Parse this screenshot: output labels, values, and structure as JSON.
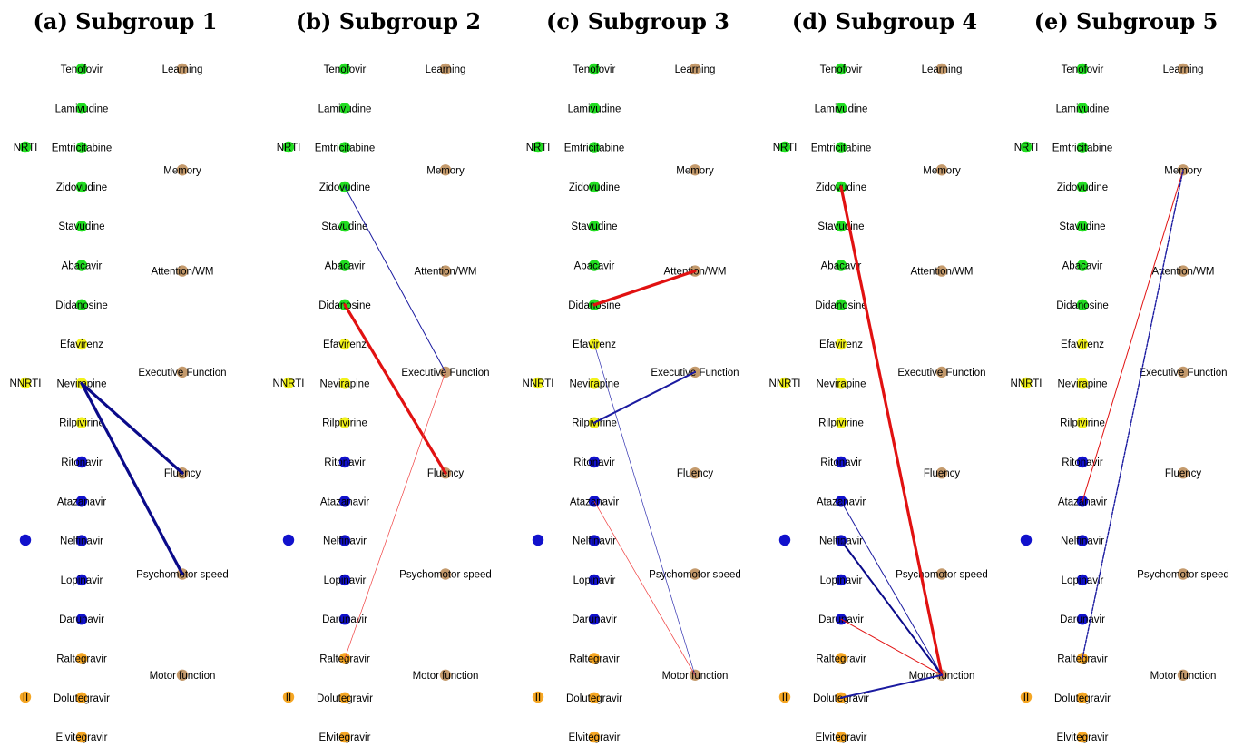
{
  "panels": [
    {
      "title": "(a) Subgroup 1",
      "edges": [
        {
          "from": "drug:Nevirapine",
          "to": "out:Fluency",
          "color": "#0a0a8a",
          "width": "thick"
        },
        {
          "from": "drug:Nevirapine",
          "to": "out:Psychomotor speed",
          "color": "#0a0a8a",
          "width": "thick"
        }
      ]
    },
    {
      "title": "(b) Subgroup 2",
      "edges": [
        {
          "from": "drug:Zidovudine",
          "to": "out:Executive Function",
          "color": "#1a1aa0",
          "width": "thin"
        },
        {
          "from": "drug:Didanosine",
          "to": "out:Fluency",
          "color": "#e11111",
          "width": "thick"
        },
        {
          "from": "drug:Raltegravir",
          "to": "out:Executive Function",
          "color": "#f04040",
          "width": "hair"
        }
      ]
    },
    {
      "title": "(c) Subgroup 3",
      "edges": [
        {
          "from": "drug:Didanosine",
          "to": "out:Attention/WM",
          "color": "#e11111",
          "width": "thick"
        },
        {
          "from": "drug:Rilpivirine",
          "to": "out:Executive Function",
          "color": "#1a1aa0",
          "width": "medium"
        },
        {
          "from": "drug:Efavirenz",
          "to": "out:Motor function",
          "color": "#3030b0",
          "width": "hair"
        },
        {
          "from": "drug:Atazanavir",
          "to": "out:Motor function",
          "color": "#f04040",
          "width": "hair"
        }
      ]
    },
    {
      "title": "(d) Subgroup 4",
      "edges": [
        {
          "from": "drug:Zidovudine",
          "to": "out:Motor function",
          "color": "#e11111",
          "width": "thick"
        },
        {
          "from": "drug:Atazanavir",
          "to": "out:Motor function",
          "color": "#1a1aa0",
          "width": "thin"
        },
        {
          "from": "drug:Nelfinavir",
          "to": "out:Motor function",
          "color": "#0a0a8a",
          "width": "medium"
        },
        {
          "from": "drug:Darunavir",
          "to": "out:Motor function",
          "color": "#e11111",
          "width": "thin"
        },
        {
          "from": "drug:Dolutegravir",
          "to": "out:Motor function",
          "color": "#1a1aa0",
          "width": "medium"
        }
      ]
    },
    {
      "title": "(e) Subgroup  5",
      "edges": [
        {
          "from": "drug:Atazanavir",
          "to": "out:Memory",
          "color": "#e11111",
          "width": "thin"
        },
        {
          "from": "drug:Raltegravir",
          "to": "out:Memory",
          "color": "#1a1aa0",
          "width": "dashed"
        }
      ]
    }
  ],
  "drugs": [
    {
      "name": "Tenofovir",
      "class": "NRTI"
    },
    {
      "name": "Lamivudine",
      "class": "NRTI"
    },
    {
      "name": "Emtricitabine",
      "class": "NRTI"
    },
    {
      "name": "Zidovudine",
      "class": "NRTI"
    },
    {
      "name": "Stavudine",
      "class": "NRTI"
    },
    {
      "name": "Abacavir",
      "class": "NRTI"
    },
    {
      "name": "Didanosine",
      "class": "NRTI"
    },
    {
      "name": "Efavirenz",
      "class": "NNRTI"
    },
    {
      "name": "Nevirapine",
      "class": "NNRTI"
    },
    {
      "name": "Rilpivirine",
      "class": "NNRTI"
    },
    {
      "name": "Ritonavir",
      "class": "PI"
    },
    {
      "name": "Atazanavir",
      "class": "PI"
    },
    {
      "name": "Nelfinavir",
      "class": "PI"
    },
    {
      "name": "Lopinavir",
      "class": "PI"
    },
    {
      "name": "Darunavir",
      "class": "PI"
    },
    {
      "name": "Raltegravir",
      "class": "II"
    },
    {
      "name": "Dolutegravir",
      "class": "II"
    },
    {
      "name": "Elvitegravir",
      "class": "II"
    }
  ],
  "classes": [
    {
      "key": "NRTI",
      "label": "NRTI",
      "color": "#22dd22"
    },
    {
      "key": "NNRTI",
      "label": "NNRTI",
      "color": "#f2f21a"
    },
    {
      "key": "PI",
      "label": "",
      "color": "#1111cc"
    },
    {
      "key": "II",
      "label": "II",
      "color": "#f5a623"
    }
  ],
  "outcomes": [
    "Learning",
    "Memory",
    "Attention/WM",
    "Executive Function",
    "Fluency",
    "Psychomotor speed",
    "Motor function"
  ],
  "outcome_color": "#c49a6c"
}
